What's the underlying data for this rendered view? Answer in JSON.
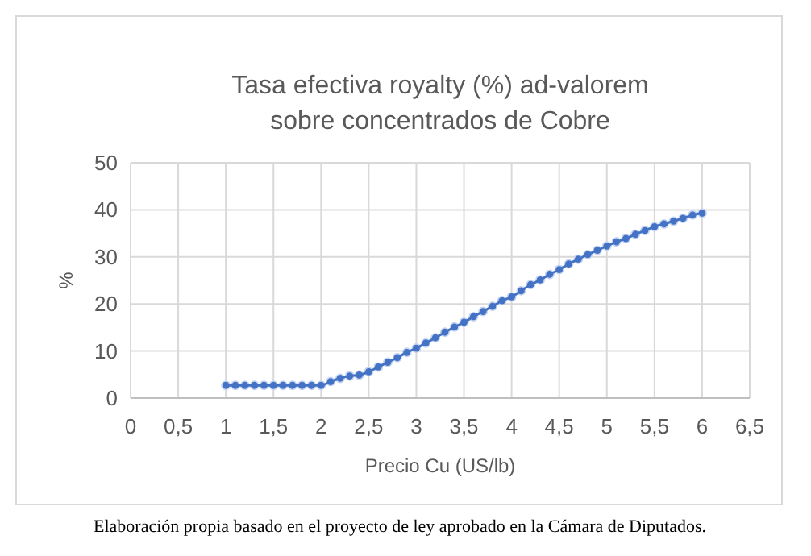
{
  "chart_data": {
    "type": "line",
    "title": "Tasa efectiva royalty (%) ad-valorem sobre concentrados de Cobre",
    "xlabel": "Precio Cu (US/lb)",
    "ylabel": "%",
    "annotations": [
      "Elaboración propia basado en el proyecto de ley aprobado en la Cámara de Diputados."
    ],
    "x": [
      1,
      1.1,
      1.2,
      1.3,
      1.4,
      1.5,
      1.6,
      1.7,
      1.8,
      1.9,
      2,
      2.1,
      2.2,
      2.3,
      2.4,
      2.5,
      2.6,
      2.7,
      2.8,
      2.9,
      3,
      3.1,
      3.2,
      3.3,
      3.4,
      3.5,
      3.6,
      3.7,
      3.8,
      3.9,
      4,
      4.1,
      4.2,
      4.3,
      4.4,
      4.5,
      4.6,
      4.7,
      4.8,
      4.9,
      5,
      5.1,
      5.2,
      5.3,
      5.4,
      5.5,
      5.6,
      5.7,
      5.8,
      5.9,
      6
    ],
    "series": [
      {
        "color": "#4472c4",
        "values": [
          2.7,
          2.7,
          2.7,
          2.7,
          2.7,
          2.7,
          2.7,
          2.7,
          2.7,
          2.7,
          2.7,
          3.5,
          4.2,
          4.7,
          4.9,
          5.6,
          6.6,
          7.6,
          8.6,
          9.7,
          10.6,
          11.7,
          12.8,
          14,
          15.1,
          16.1,
          17.3,
          18.4,
          19.5,
          20.7,
          21.5,
          22.8,
          24.1,
          25.1,
          26.3,
          27.3,
          28.5,
          29.5,
          30.5,
          31.4,
          32.3,
          33.2,
          33.9,
          34.8,
          35.6,
          36.4,
          37,
          37.6,
          38.2,
          38.9,
          39.3
        ]
      }
    ],
    "xlim": [
      0,
      6.5
    ],
    "xticks": [
      0,
      {
        "value": 0.5,
        "label": "0,5"
      },
      1,
      {
        "value": 1.5,
        "label": "1,5"
      },
      2,
      {
        "value": 2.5,
        "label": "2,5"
      },
      3,
      {
        "value": 3.5,
        "label": "3,5"
      },
      4,
      {
        "value": 4.5,
        "label": "4,5"
      },
      5,
      {
        "value": 5.5,
        "label": "5,5"
      },
      6,
      {
        "value": 6.5,
        "label": "6,5"
      }
    ],
    "ylim": [
      0,
      50
    ],
    "yticks": [
      0,
      10,
      20,
      30,
      40,
      50
    ],
    "grid": true,
    "marker": "circle"
  }
}
